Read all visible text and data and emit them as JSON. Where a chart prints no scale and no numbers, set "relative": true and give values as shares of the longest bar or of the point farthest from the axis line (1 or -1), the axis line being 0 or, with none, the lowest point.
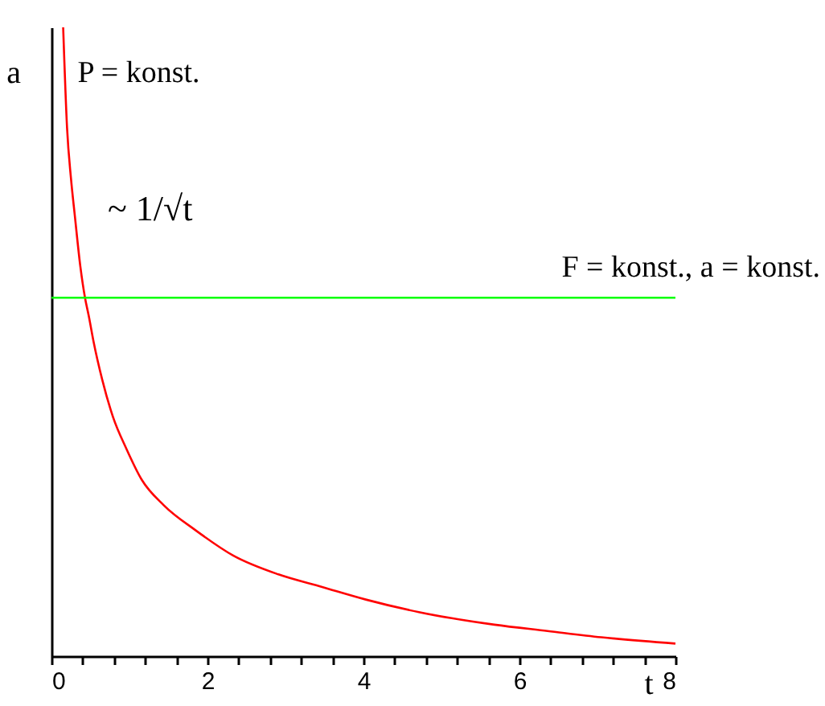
{
  "chart_data": {
    "type": "line",
    "xlabel": "t",
    "ylabel": "a",
    "relative": true,
    "xlim": [
      0,
      8
    ],
    "xticks": [
      0,
      {
        "value": 0.4,
        "label": null
      },
      {
        "value": 0.8,
        "label": null
      },
      {
        "value": 1.2,
        "label": null
      },
      {
        "value": 1.6,
        "label": null
      },
      2,
      {
        "value": 2.4,
        "label": null
      },
      {
        "value": 2.8,
        "label": null
      },
      {
        "value": 3.2,
        "label": null
      },
      {
        "value": 3.6,
        "label": null
      },
      4,
      {
        "value": 4.4,
        "label": null
      },
      {
        "value": 4.8,
        "label": null
      },
      {
        "value": 5.2,
        "label": null
      },
      {
        "value": 5.6,
        "label": null
      },
      6,
      {
        "value": 6.4,
        "label": null
      },
      {
        "value": 6.8,
        "label": null
      },
      {
        "value": 7.2,
        "label": null
      },
      {
        "value": 7.6,
        "label": null
      },
      8
    ],
    "annotations": [
      "~ 1/√t"
    ],
    "series": [
      {
        "name": "P = konst.",
        "color": "#ff0000",
        "x": [
          0.15,
          0.2,
          0.25,
          0.3,
          0.37,
          0.43,
          0.48,
          0.54,
          0.65,
          0.79,
          0.96,
          1.16,
          1.44,
          1.85,
          2.33,
          2.91,
          3.47,
          4.03,
          4.71,
          5.68,
          6.36,
          7.05,
          8
        ],
        "values": [
          1.0,
          0.84,
          0.76,
          0.7,
          0.62,
          0.57,
          0.54,
          0.5,
          0.44,
          0.38,
          0.33,
          0.28,
          0.24,
          0.2,
          0.16,
          0.13,
          0.11,
          0.09,
          0.07,
          0.05,
          0.04,
          0.03,
          0.02
        ]
      },
      {
        "name": "F = konst., a = konst.",
        "color": "#00ff00",
        "x": [
          0,
          8
        ],
        "values": [
          0.57,
          0.57
        ]
      }
    ]
  }
}
